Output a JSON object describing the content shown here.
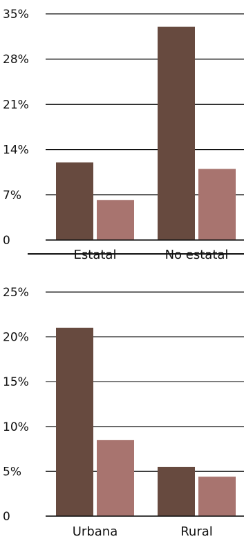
{
  "colors": {
    "series1": "#674a3f",
    "series2": "#a8746f",
    "grid": "#111111"
  },
  "chart_data": [
    {
      "type": "bar",
      "categories": [
        "Estatal",
        "No estatal"
      ],
      "series": [
        {
          "values": [
            12,
            33
          ]
        },
        {
          "values": [
            6.2,
            11
          ]
        }
      ],
      "yticks": [
        "0",
        "7%",
        "14%",
        "21%",
        "28%",
        "35%"
      ],
      "ylim": [
        0,
        35
      ],
      "grid": true
    },
    {
      "type": "bar",
      "categories": [
        "Urbana",
        "Rural"
      ],
      "series": [
        {
          "values": [
            21,
            5.5
          ]
        },
        {
          "values": [
            8.5,
            4.4
          ]
        }
      ],
      "yticks": [
        "0",
        "5%",
        "10%",
        "15%",
        "20%",
        "25%"
      ],
      "ylim": [
        0,
        25
      ],
      "grid": true
    }
  ]
}
